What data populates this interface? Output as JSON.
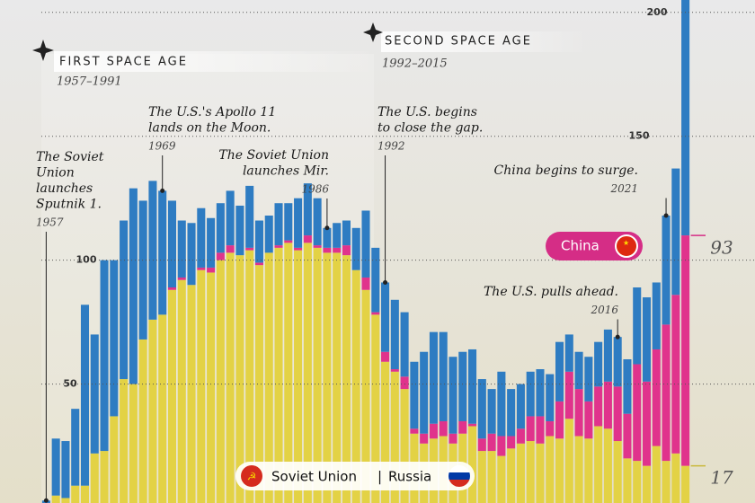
{
  "chart_data": {
    "type": "stacked_bar",
    "x": [
      1957,
      1958,
      1959,
      1960,
      1961,
      1962,
      1963,
      1964,
      1965,
      1966,
      1967,
      1968,
      1969,
      1970,
      1971,
      1972,
      1973,
      1974,
      1975,
      1976,
      1977,
      1978,
      1979,
      1980,
      1981,
      1982,
      1983,
      1984,
      1985,
      1986,
      1987,
      1988,
      1989,
      1990,
      1991,
      1992,
      1993,
      1994,
      1995,
      1996,
      1997,
      1998,
      1999,
      2000,
      2001,
      2002,
      2003,
      2004,
      2005,
      2006,
      2007,
      2008,
      2009,
      2010,
      2011,
      2012,
      2013,
      2014,
      2015,
      2016,
      2017,
      2018,
      2019,
      2020,
      2021,
      2022,
      2023
    ],
    "xlim": [
      1956.5,
      2023.5
    ],
    "ylim": [
      2,
      205
    ],
    "yticks": [
      50,
      100,
      150,
      200
    ],
    "grid": true,
    "series": [
      {
        "name": "Soviet Union",
        "name_later": "Russia",
        "color": "#e3d245",
        "values": [
          2,
          5,
          4,
          9,
          9,
          22,
          23,
          37,
          52,
          50,
          68,
          76,
          78,
          88,
          92,
          90,
          96,
          95,
          100,
          103,
          102,
          104,
          98,
          103,
          105,
          107,
          104,
          107,
          105,
          103,
          103,
          102,
          96,
          88,
          78,
          59,
          55,
          48,
          30,
          26,
          28,
          29,
          26,
          30,
          33,
          23,
          23,
          21,
          24,
          26,
          27,
          26,
          29,
          28,
          36,
          29,
          28,
          33,
          32,
          27,
          20,
          19,
          17,
          25,
          19,
          22,
          17
        ]
      },
      {
        "name": "China",
        "color": "#e0338c",
        "values": [
          0,
          0,
          0,
          0,
          0,
          0,
          0,
          0,
          0,
          0,
          0,
          0,
          0,
          1,
          1,
          0,
          1,
          2,
          3,
          3,
          0,
          1,
          1,
          0,
          1,
          1,
          1,
          3,
          1,
          2,
          2,
          4,
          0,
          5,
          1,
          4,
          1,
          5,
          2,
          4,
          6,
          6,
          4,
          5,
          1,
          5,
          7,
          8,
          5,
          6,
          10,
          11,
          6,
          15,
          19,
          19,
          15,
          16,
          19,
          22,
          18,
          39,
          34,
          39,
          55,
          64,
          93
        ]
      },
      {
        "color": "#2e7cc2",
        "values": [
          1,
          23,
          23,
          31,
          73,
          48,
          77,
          63,
          64,
          79,
          56,
          56,
          50,
          35,
          23,
          25,
          24,
          20,
          20,
          22,
          20,
          25,
          17,
          15,
          17,
          15,
          20,
          21,
          19,
          8,
          10,
          10,
          17,
          27,
          26,
          28,
          28,
          26,
          27,
          33,
          37,
          36,
          31,
          28,
          30,
          24,
          18,
          26,
          19,
          18,
          18,
          19,
          19,
          24,
          15,
          15,
          18,
          18,
          21,
          20,
          22,
          31,
          34,
          27,
          44,
          51,
          116
        ]
      }
    ],
    "eras": [
      {
        "title": "FIRST SPACE AGE",
        "range": "1957–1991"
      },
      {
        "title": "SECOND SPACE AGE",
        "range": "1992–2015"
      }
    ],
    "annotations": [
      {
        "lines": [
          "The Soviet",
          "Union",
          "launches",
          "Sputnik 1."
        ],
        "year": 1957
      },
      {
        "lines": [
          "The U.S.'s Apollo 11",
          "lands on the Moon."
        ],
        "year": 1969
      },
      {
        "lines": [
          "The Soviet Union",
          "launches Mir."
        ],
        "year": 1986
      },
      {
        "lines": [
          "The U.S. begins",
          "to close the gap."
        ],
        "year": 1992
      },
      {
        "lines": [
          "China begins to surge."
        ],
        "year": 2021
      },
      {
        "lines": [
          "The U.S. pulls ahead."
        ],
        "year": 2016
      }
    ]
  }
}
